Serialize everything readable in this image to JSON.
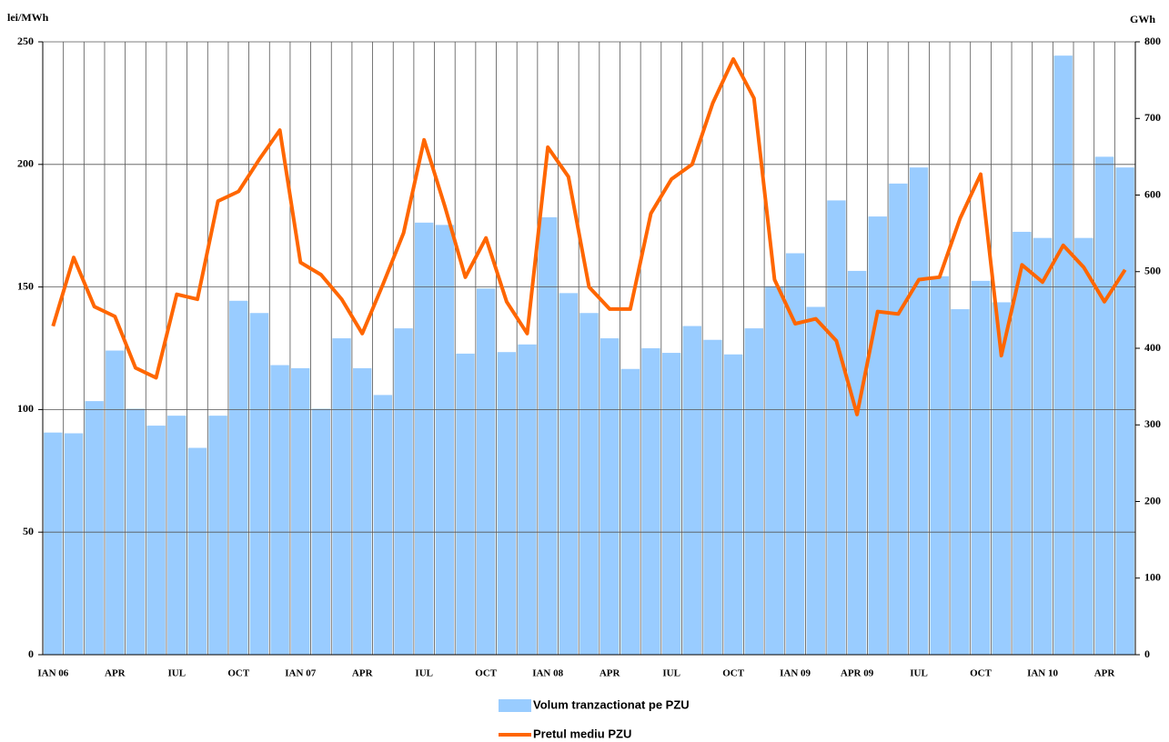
{
  "chart_data": {
    "type": "bar_line",
    "ylabel": "lei/MWh",
    "y2label": "GWh",
    "categories": [
      "IAN 06",
      null,
      null,
      "APR",
      null,
      null,
      "IUL",
      null,
      null,
      "OCT",
      null,
      null,
      "IAN 07",
      null,
      null,
      "APR",
      null,
      null,
      "IUL",
      null,
      null,
      "OCT",
      null,
      null,
      "IAN 08",
      null,
      null,
      "APR",
      null,
      null,
      "IUL",
      null,
      null,
      "OCT",
      null,
      null,
      "IAN 09",
      null,
      null,
      "APR 09",
      null,
      null,
      "IUL",
      null,
      null,
      "OCT",
      null,
      null,
      "IAN 10",
      null,
      null,
      "APR",
      null
    ],
    "series": [
      {
        "name": "Volum tranzactionat pe PZU",
        "type": "bar",
        "color": "#99ccff",
        "axis": "y2",
        "values": [
          290,
          289,
          331,
          397,
          321,
          299,
          312,
          270,
          312,
          462,
          446,
          378,
          374,
          321,
          413,
          374,
          339,
          426,
          564,
          561,
          393,
          478,
          395,
          405,
          571,
          472,
          446,
          413,
          373,
          400,
          394,
          429,
          411,
          392,
          426,
          481,
          524,
          454,
          593,
          501,
          572,
          615,
          636,
          494,
          451,
          488,
          460,
          552,
          544,
          782,
          544,
          650,
          636
        ]
      },
      {
        "name": "Pretul mediu PZU",
        "type": "line",
        "color": "#ff6600",
        "axis": "y",
        "values": [
          134,
          162,
          142,
          138,
          117,
          113,
          147,
          145,
          185,
          189,
          202,
          214,
          160,
          155,
          145,
          131,
          151,
          172,
          210,
          183,
          154,
          170,
          144,
          131,
          207,
          195,
          150,
          141,
          141,
          180,
          194,
          200,
          225,
          243,
          227,
          153,
          135,
          137,
          128,
          98,
          140,
          139,
          153,
          154,
          178,
          196,
          122,
          159,
          152,
          167,
          158,
          144,
          157
        ]
      }
    ],
    "ylim": [
      0,
      250
    ],
    "yticks": [
      0,
      50,
      100,
      150,
      200,
      250
    ],
    "y2lim": [
      0,
      800
    ],
    "y2ticks": [
      0,
      100,
      200,
      300,
      400,
      500,
      600,
      700,
      800
    ],
    "grid": true
  }
}
